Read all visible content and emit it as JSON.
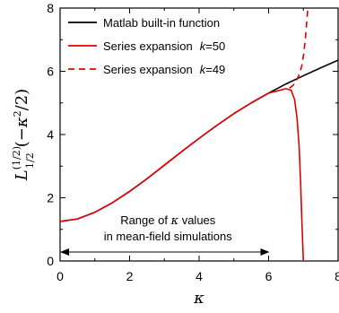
{
  "chart_data": {
    "type": "line",
    "xlabel": "κ",
    "ylabel": "L_{1/2}^{(1/2)}(−κ²/2)",
    "xlim": [
      0,
      8
    ],
    "ylim": [
      0,
      8
    ],
    "x_ticks": [
      "0",
      "2",
      "4",
      "6",
      "8"
    ],
    "y_ticks": [
      "0",
      "2",
      "4",
      "6",
      "8"
    ],
    "grid": false,
    "legend_position": "top-left",
    "series": [
      {
        "name": "Matlab built-in function",
        "color": "#000000",
        "dash": "solid",
        "x": [
          0,
          0.5,
          1,
          1.5,
          2,
          2.5,
          3,
          3.5,
          4,
          4.5,
          5,
          5.5,
          6,
          6.5,
          7,
          7.5,
          8
        ],
        "y": [
          1.25,
          1.33,
          1.54,
          1.84,
          2.2,
          2.6,
          3.03,
          3.46,
          3.88,
          4.28,
          4.66,
          5.0,
          5.31,
          5.6,
          5.86,
          6.11,
          6.35
        ]
      },
      {
        "name": "Series expansion",
        "label_param": "k=50",
        "k_symbol": "k",
        "k_value": "=50",
        "color": "#e00000",
        "dash": "solid",
        "x": [
          0,
          0.5,
          1,
          1.5,
          2,
          2.5,
          3,
          3.5,
          4,
          4.5,
          5,
          5.5,
          6,
          6.5,
          6.65,
          6.75,
          6.82,
          6.88,
          6.92,
          6.96,
          7.0
        ],
        "y": [
          1.25,
          1.33,
          1.54,
          1.84,
          2.2,
          2.6,
          3.03,
          3.46,
          3.88,
          4.28,
          4.66,
          5.0,
          5.31,
          5.45,
          5.4,
          5.1,
          4.5,
          3.6,
          2.5,
          1.2,
          0
        ]
      },
      {
        "name": "Series expansion",
        "label_param": "k=49",
        "k_symbol": "k",
        "k_value": "=49",
        "color": "#e00000",
        "dash": "dashed",
        "x": [
          6.6,
          6.7,
          6.8,
          6.9,
          6.96,
          7.01,
          7.06,
          7.1,
          7.13
        ],
        "y": [
          5.47,
          5.55,
          5.7,
          5.95,
          6.2,
          6.55,
          7.05,
          7.6,
          8.0
        ]
      }
    ],
    "annotation": {
      "line1_prefix": "Range of ",
      "line1_symbol": "κ",
      "line1_suffix": " values",
      "line2": "in mean-field simulations",
      "arrow_from": 0,
      "arrow_to": 6
    }
  }
}
